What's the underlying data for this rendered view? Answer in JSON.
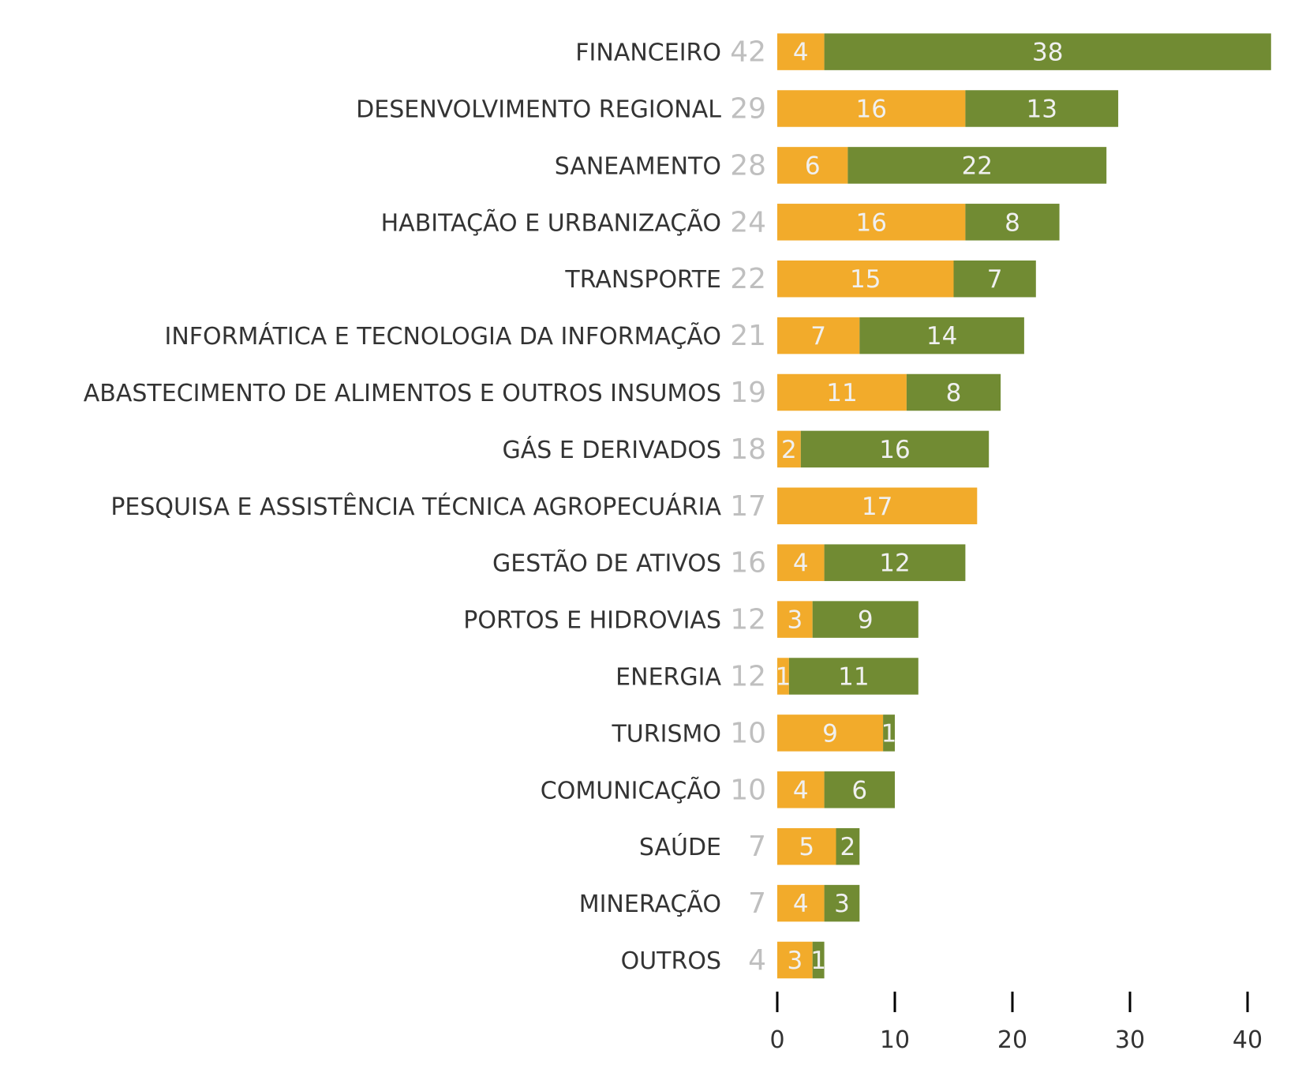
{
  "chart_data": {
    "type": "bar",
    "orientation": "horizontal",
    "stacked": true,
    "categories": [
      "FINANCEIRO",
      "DESENVOLVIMENTO REGIONAL",
      "SANEAMENTO",
      "HABITAÇÃO E URBANIZAÇÃO",
      "TRANSPORTE",
      "INFORMÁTICA E TECNOLOGIA DA INFORMAÇÃO",
      "ABASTECIMENTO DE ALIMENTOS E OUTROS INSUMOS",
      "GÁS E DERIVADOS",
      "PESQUISA E ASSISTÊNCIA TÉCNICA AGROPECUÁRIA",
      "GESTÃO DE ATIVOS",
      "PORTOS E HIDROVIAS",
      "ENERGIA",
      "TURISMO",
      "COMUNICAÇÃO",
      "SAÚDE",
      "MINERAÇÃO",
      "OUTROS"
    ],
    "series": [
      {
        "color": "#F2AB2B",
        "values": [
          4,
          16,
          6,
          16,
          15,
          7,
          11,
          2,
          17,
          4,
          3,
          1,
          9,
          4,
          5,
          4,
          3
        ]
      },
      {
        "color": "#718B33",
        "values": [
          38,
          13,
          22,
          8,
          7,
          14,
          8,
          16,
          0,
          12,
          9,
          11,
          1,
          6,
          2,
          3,
          1
        ]
      }
    ],
    "totals": [
      42,
      29,
      28,
      24,
      22,
      21,
      19,
      18,
      17,
      16,
      12,
      12,
      10,
      10,
      7,
      7,
      4
    ],
    "xticks": [
      0,
      10,
      20,
      30,
      40
    ],
    "xlim": [
      0,
      42
    ],
    "grid": false,
    "colors": {
      "label": "#333333",
      "total": "#BFBFBF",
      "bar_label": "#F0F0F0",
      "tick": "#000000"
    }
  }
}
